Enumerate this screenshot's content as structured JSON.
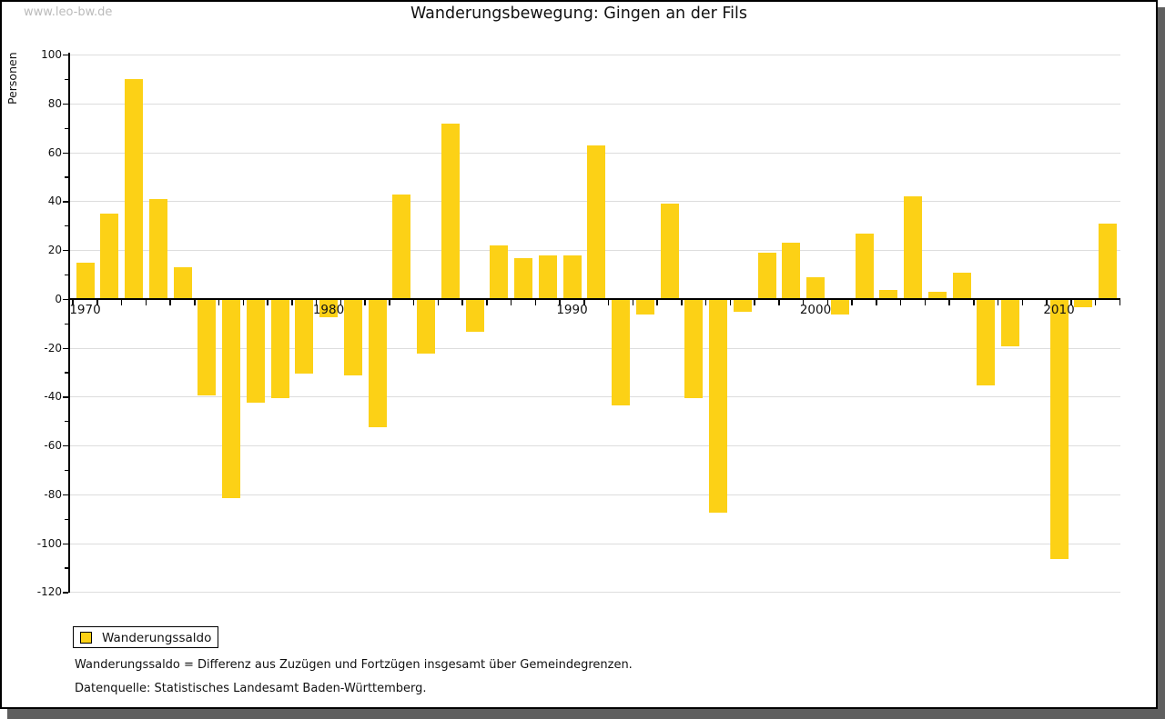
{
  "watermark": "www.leo-bw.de",
  "title": "Wanderungsbewegung: Gingen an der Fils",
  "legend": {
    "label": "Wanderungssaldo",
    "swatch_color": "#FCD116"
  },
  "footnotes": [
    "Wanderungssaldo = Differenz aus Zuzügen und Fortzügen insgesamt über Gemeindegrenzen.",
    "Datenquelle: Statistisches Landesamt Baden-Württemberg."
  ],
  "chart_data": {
    "type": "bar",
    "title": "Wanderungsbewegung: Gingen an der Fils",
    "xlabel": "",
    "ylabel": "Personen",
    "ylim": [
      -120,
      100
    ],
    "ytick_step": 20,
    "ytick_minor_step": 10,
    "grid": true,
    "legend_position": "bottom-left",
    "bar_color": "#FCD116",
    "grid_color": "#DDDDDD",
    "x_tick_labels": [
      "1970",
      "1980",
      "1990",
      "2000",
      "2010"
    ],
    "series_name": "Wanderungssaldo",
    "years": [
      1970,
      1971,
      1972,
      1973,
      1974,
      1975,
      1976,
      1977,
      1978,
      1979,
      1980,
      1981,
      1982,
      1983,
      1984,
      1985,
      1986,
      1987,
      1988,
      1989,
      1990,
      1991,
      1992,
      1993,
      1994,
      1995,
      1996,
      1997,
      1998,
      1999,
      2000,
      2001,
      2002,
      2003,
      2004,
      2005,
      2006,
      2007,
      2008,
      2009,
      2010,
      2011,
      2012
    ],
    "values": [
      15,
      35,
      90,
      41,
      13,
      -39,
      -81,
      -42,
      -40,
      -30,
      -7,
      -31,
      -52,
      43,
      -22,
      72,
      -13,
      22,
      17,
      18,
      18,
      63,
      -43,
      -6,
      39,
      -40,
      -87,
      -5,
      19,
      23,
      9,
      -6,
      27,
      4,
      42,
      3,
      11,
      -35,
      -19,
      0,
      -106,
      -3,
      31
    ]
  }
}
